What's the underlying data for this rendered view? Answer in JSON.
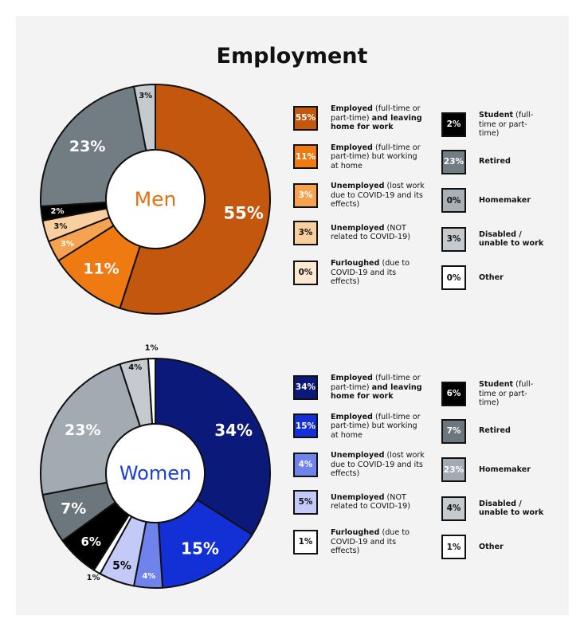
{
  "title": "Employment",
  "charts": [
    {
      "id": "men",
      "center_label": "Men",
      "center_color": "#e8700f"
    },
    {
      "id": "women",
      "center_label": "Women",
      "center_color": "#1a3fd6"
    }
  ],
  "chart_data": [
    {
      "type": "pie",
      "title": "Men",
      "categories": [
        "Employed (full-time or part-time) and leaving home for work",
        "Employed (full-time or part-time) but working at home",
        "Unemployed (lost work due to COVID-19 and its effects)",
        "Unemployed (NOT related to COVID-19)",
        "Furloughed (due to COVID-19 and its effects)",
        "Student (full-time or part-time)",
        "Retired",
        "Homemaker",
        "Disabled / unable to work",
        "Other"
      ],
      "values": [
        55,
        11,
        3,
        3,
        0,
        2,
        23,
        0,
        3,
        0
      ],
      "labels": [
        "55%",
        "11%",
        "3%",
        "3%",
        "0%",
        "2%",
        "23%",
        "0%",
        "3%",
        "0%"
      ],
      "colors": [
        "#c4570e",
        "#f07a12",
        "#f5a350",
        "#f9cfa0",
        "#fde8d2",
        "#000000",
        "#727c83",
        "#a9b1b6",
        "#c4cacd",
        "#ffffff"
      ],
      "label_colors": [
        "#ffffff",
        "#ffffff",
        "#ffffff",
        "#111111",
        "#111111",
        "#ffffff",
        "#ffffff",
        "#111111",
        "#111111",
        "#111111"
      ]
    },
    {
      "type": "pie",
      "title": "Women",
      "categories": [
        "Employed (full-time or part-time) and leaving home for work",
        "Employed (full-time or part-time) but working at home",
        "Unemployed (lost work due to COVID-19 and its effects)",
        "Unemployed (NOT related to COVID-19)",
        "Furloughed (due to COVID-19 and its effects)",
        "Student (full-time or part-time)",
        "Retired",
        "Homemaker",
        "Disabled / unable to work",
        "Other"
      ],
      "values": [
        34,
        15,
        4,
        5,
        1,
        6,
        7,
        23,
        4,
        1
      ],
      "labels": [
        "34%",
        "15%",
        "4%",
        "5%",
        "1%",
        "6%",
        "7%",
        "23%",
        "4%",
        "1%"
      ],
      "colors": [
        "#0b1a7a",
        "#1230d6",
        "#7083ea",
        "#c3caf7",
        "#ffffff",
        "#000000",
        "#6b767d",
        "#a2abb1",
        "#c4cacd",
        "#ffffff"
      ],
      "label_colors": [
        "#ffffff",
        "#ffffff",
        "#ffffff",
        "#111111",
        "#111111",
        "#ffffff",
        "#ffffff",
        "#ffffff",
        "#111111",
        "#111111"
      ]
    }
  ],
  "legend_parts": [
    [
      [
        "Employed",
        true
      ],
      [
        " (full-time or part-time) ",
        false
      ],
      [
        "and leaving home for work",
        true
      ]
    ],
    [
      [
        "Employed",
        true
      ],
      [
        " (full-time or part-time) but working at home",
        false
      ]
    ],
    [
      [
        "Unemployed",
        true
      ],
      [
        " (lost work due to COVID-19 and its effects)",
        false
      ]
    ],
    [
      [
        "Unemployed",
        true
      ],
      [
        " (NOT related to COVID-19)",
        false
      ]
    ],
    [
      [
        "Furloughed",
        true
      ],
      [
        " (due to COVID-19 and its effects)",
        false
      ]
    ],
    [
      [
        "Student",
        true
      ],
      [
        " (full-time or part-time)",
        false
      ]
    ],
    [
      [
        "Retired",
        true
      ]
    ],
    [
      [
        "Homemaker",
        true
      ]
    ],
    [
      [
        "Disabled / unable to work",
        true
      ]
    ],
    [
      [
        "Other",
        true
      ]
    ]
  ]
}
